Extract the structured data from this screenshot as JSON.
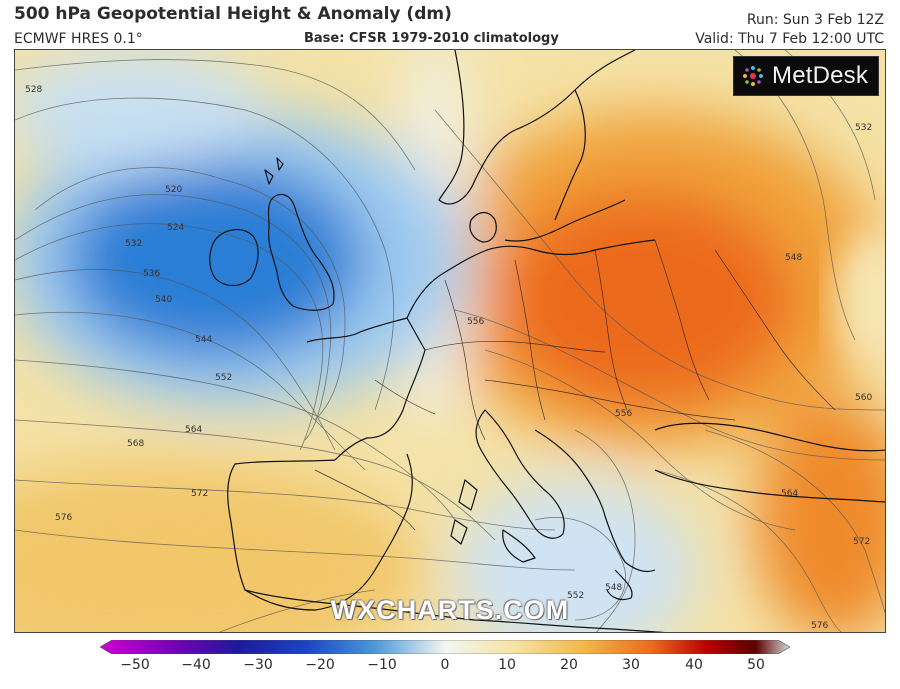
{
  "header": {
    "title": "500 hPa Geopotential Height & Anomaly (dm)",
    "model": "ECMWF HRES 0.1°",
    "base": "Base: CFSR 1979-2010 climatology",
    "run": "Run: Sun 3 Feb 12Z",
    "valid": "Valid: Thu 7 Feb 12:00 UTC"
  },
  "logo": {
    "text": "MetDesk"
  },
  "watermark": "WXCHARTS.COM",
  "map": {
    "contour_labels": [
      "528",
      "520",
      "524",
      "532",
      "536",
      "540",
      "544",
      "552",
      "564",
      "568",
      "572",
      "576",
      "556",
      "556",
      "548",
      "532",
      "560",
      "564",
      "572",
      "576",
      "552",
      "548"
    ],
    "colors": {
      "strong_negative": "#1f6fd0",
      "negative": "#6fb0e6",
      "neutral": "#e8f2f8",
      "weak_positive": "#f6e3a4",
      "positive": "#f2b84a",
      "strong_positive": "#ee6a1c"
    }
  },
  "colorbar": {
    "ticks": [
      "−50",
      "−40",
      "−30",
      "−20",
      "−10",
      "0",
      "10",
      "20",
      "30",
      "40",
      "50"
    ],
    "min": -50,
    "max": 50,
    "stops": [
      "#d000d0",
      "#7a00b8",
      "#1e1a9a",
      "#1a46c4",
      "#4d9ad8",
      "#dcecf6",
      "#f6e3a4",
      "#f2b84a",
      "#ec6a1c",
      "#b80000",
      "#5a0000",
      "#d8d8d8"
    ]
  }
}
